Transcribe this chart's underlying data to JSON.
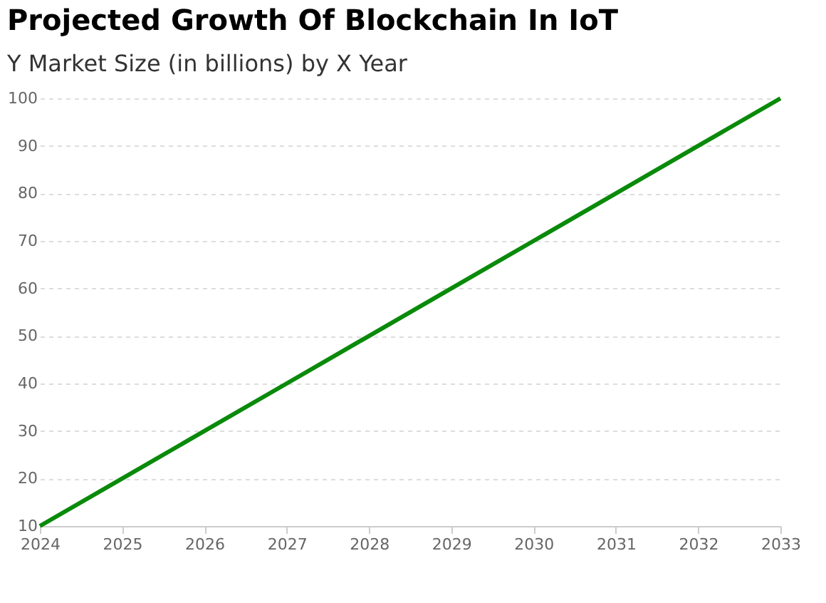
{
  "chart_data": {
    "type": "line",
    "title": "Projected Growth Of Blockchain In IoT",
    "subtitle": "Y Market Size (in billions) by X Year",
    "x": [
      2024,
      2025,
      2026,
      2027,
      2028,
      2029,
      2030,
      2031,
      2032,
      2033
    ],
    "series": [
      {
        "color": "#0a8a0a",
        "values": [
          10,
          20,
          30,
          40,
          50,
          60,
          70,
          80,
          90,
          100
        ]
      }
    ],
    "xlim": [
      2024,
      2033
    ],
    "xticks": [
      2024,
      2025,
      2026,
      2027,
      2028,
      2029,
      2030,
      2031,
      2032,
      2033
    ],
    "ylim": [
      10,
      100
    ],
    "yticks": [
      10,
      20,
      30,
      40,
      50,
      60,
      70,
      80,
      90,
      100
    ],
    "grid": "y",
    "marker": "none",
    "line_style": "solid"
  }
}
